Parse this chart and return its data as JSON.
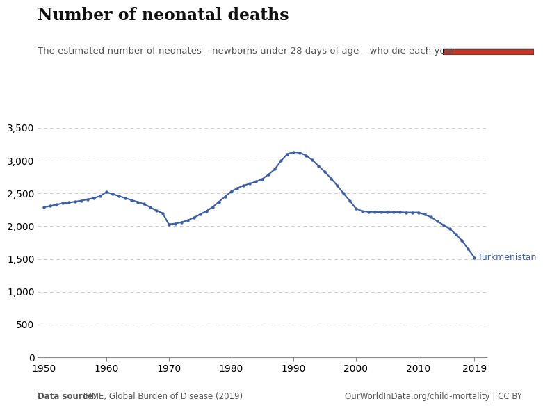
{
  "title": "Number of neonatal deaths",
  "subtitle": "The estimated number of neonates – newborns under 28 days of age – who die each year.",
  "datasource_bold": "Data source:",
  "datasource_rest": " IHME, Global Burden of Disease (2019)",
  "copyright": "OurWorldInData.org/child-mortality | CC BY",
  "label_country": "Turkmenistan",
  "line_color": "#3b5ea6",
  "dot_color": "#3b5ea6",
  "background_color": "#ffffff",
  "grid_color": "#cccccc",
  "years": [
    1950,
    1951,
    1952,
    1953,
    1954,
    1955,
    1956,
    1957,
    1958,
    1959,
    1960,
    1961,
    1962,
    1963,
    1964,
    1965,
    1966,
    1967,
    1968,
    1969,
    1970,
    1971,
    1972,
    1973,
    1974,
    1975,
    1976,
    1977,
    1978,
    1979,
    1980,
    1981,
    1982,
    1983,
    1984,
    1985,
    1986,
    1987,
    1988,
    1989,
    1990,
    1991,
    1992,
    1993,
    1994,
    1995,
    1996,
    1997,
    1998,
    1999,
    2000,
    2001,
    2002,
    2003,
    2004,
    2005,
    2006,
    2007,
    2008,
    2009,
    2010,
    2011,
    2012,
    2013,
    2014,
    2015,
    2016,
    2017,
    2018,
    2019
  ],
  "values": [
    2290,
    2310,
    2330,
    2350,
    2360,
    2375,
    2390,
    2410,
    2430,
    2460,
    2520,
    2490,
    2460,
    2430,
    2400,
    2370,
    2340,
    2290,
    2240,
    2200,
    2030,
    2040,
    2060,
    2090,
    2130,
    2180,
    2230,
    2290,
    2370,
    2450,
    2530,
    2580,
    2620,
    2650,
    2680,
    2720,
    2790,
    2870,
    3000,
    3100,
    3130,
    3120,
    3080,
    3010,
    2920,
    2830,
    2730,
    2620,
    2500,
    2390,
    2270,
    2230,
    2220,
    2220,
    2215,
    2215,
    2215,
    2215,
    2210,
    2210,
    2210,
    2180,
    2140,
    2080,
    2020,
    1960,
    1880,
    1780,
    1650,
    1520
  ],
  "ylim": [
    0,
    3500
  ],
  "yticks": [
    0,
    500,
    1000,
    1500,
    2000,
    2500,
    3000,
    3500
  ],
  "xlim": [
    1949,
    2021
  ],
  "xticks": [
    1950,
    1960,
    1970,
    1980,
    1990,
    2000,
    2010,
    2019
  ],
  "owid_box_color": "#1a3465",
  "owid_red": "#c0392b",
  "title_color": "#111111",
  "subtitle_color": "#555555",
  "footer_color": "#555555"
}
